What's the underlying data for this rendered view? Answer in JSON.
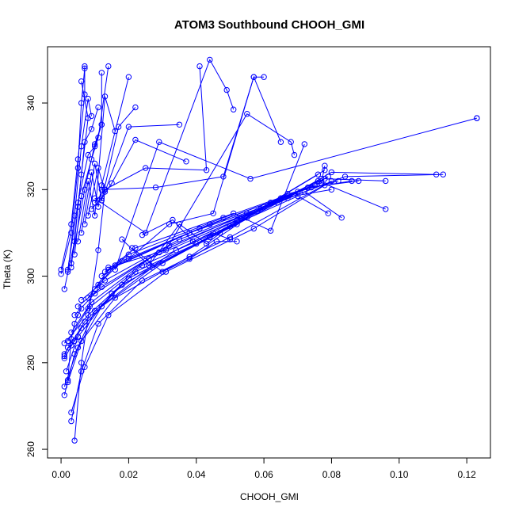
{
  "chart_data": {
    "type": "line",
    "title": "ATOM3 Southbound CHOOH_GMI",
    "xlabel": "CHOOH_GMI",
    "ylabel": "Theta (K)",
    "xlim": [
      -0.004,
      0.127
    ],
    "ylim": [
      258,
      353
    ],
    "xticks": [
      0.0,
      0.02,
      0.04,
      0.06,
      0.08,
      0.1,
      0.12
    ],
    "xtick_labels": [
      "0.00",
      "0.02",
      "0.04",
      "0.06",
      "0.08",
      "0.10",
      "0.12"
    ],
    "yticks": [
      260,
      280,
      300,
      320,
      340
    ],
    "ytick_labels": [
      "260",
      "280",
      "300",
      "320",
      "340"
    ],
    "grid": false,
    "legend": "none",
    "series_color": "#0000ff",
    "marker": "open-circle",
    "series": [
      {
        "x": [
          0.004,
          0.006,
          0.0085,
          0.011,
          0.013
        ],
        "y": [
          262,
          280,
          293,
          306,
          320
        ]
      },
      {
        "x": [
          0.003,
          0.006,
          0.011,
          0.024,
          0.05,
          0.08
        ],
        "y": [
          266.5,
          278,
          289,
          299,
          309,
          322
        ]
      },
      {
        "x": [
          0.003,
          0.007,
          0.014,
          0.031,
          0.057,
          0.078
        ],
        "y": [
          268.5,
          279,
          291,
          301,
          311,
          321
        ]
      },
      {
        "x": [
          0.001,
          0.004,
          0.01,
          0.027,
          0.052,
          0.079
        ],
        "y": [
          272.5,
          282,
          292,
          302,
          312,
          323
        ]
      },
      {
        "x": [
          0.001,
          0.005,
          0.012,
          0.03,
          0.055,
          0.077
        ],
        "y": [
          274.5,
          283.5,
          293,
          303,
          313.5,
          322.5
        ]
      },
      {
        "x": [
          0.002,
          0.006,
          0.016,
          0.038,
          0.058,
          0.076
        ],
        "y": [
          275.5,
          285,
          295,
          304.5,
          315,
          323.5
        ]
      },
      {
        "x": [
          0.0015,
          0.005,
          0.015,
          0.034,
          0.06,
          0.075
        ],
        "y": [
          278,
          286,
          296,
          306,
          316,
          321
        ]
      },
      {
        "x": [
          0.001,
          0.006,
          0.018,
          0.04,
          0.062,
          0.078
        ],
        "y": [
          281,
          288,
          298,
          307.5,
          317,
          324.5
        ]
      },
      {
        "x": [
          0.001,
          0.007,
          0.02,
          0.044,
          0.065,
          0.08
        ],
        "y": [
          282,
          289.5,
          299.5,
          309,
          318,
          320
        ]
      },
      {
        "x": [
          0.001,
          0.008,
          0.022,
          0.047,
          0.067,
          0.082
        ],
        "y": [
          284.5,
          291,
          301,
          310,
          319,
          322
        ]
      },
      {
        "x": [
          0.002,
          0.008,
          0.024,
          0.05,
          0.07,
          0.079
        ],
        "y": [
          285,
          292.5,
          302.5,
          311.5,
          318.5,
          314.5
        ]
      },
      {
        "x": [
          0.003,
          0.009,
          0.026,
          0.052,
          0.072,
          0.083
        ],
        "y": [
          287,
          294,
          304,
          313,
          319.5,
          313.5
        ]
      },
      {
        "x": [
          0.004,
          0.01,
          0.029,
          0.055,
          0.073,
          0.088
        ],
        "y": [
          291,
          296,
          305.5,
          314.5,
          320.5,
          322
        ]
      },
      {
        "x": [
          0.005,
          0.012,
          0.032,
          0.059,
          0.076,
          0.096
        ],
        "y": [
          293,
          297.5,
          307,
          315.5,
          322,
          315.5
        ]
      },
      {
        "x": [
          0.006,
          0.013,
          0.035,
          0.064,
          0.078,
          0.096
        ],
        "y": [
          294.5,
          299,
          308.5,
          317,
          322.5,
          322
        ]
      },
      {
        "x": [
          0.008,
          0.014,
          0.038,
          0.067,
          0.084,
          0.113
        ],
        "y": [
          295,
          301.5,
          310,
          318,
          323,
          323.5
        ]
      },
      {
        "x": [
          0.01,
          0.016,
          0.041,
          0.07,
          0.08,
          0.111
        ],
        "y": [
          297,
          302.5,
          311,
          319.5,
          324,
          323.5
        ]
      },
      {
        "x": [
          0.011,
          0.018,
          0.044,
          0.074,
          0.086
        ],
        "y": [
          298,
          303.5,
          312,
          320.5,
          322
        ]
      },
      {
        "x": [
          0.012,
          0.02,
          0.048,
          0.077,
          0.078
        ],
        "y": [
          300,
          305,
          313.5,
          321.5,
          325.5
        ]
      },
      {
        "x": [
          0.013,
          0.022,
          0.051,
          0.062,
          0.072
        ],
        "y": [
          301,
          306.5,
          314.5,
          310.5,
          330.5
        ]
      },
      {
        "x": [
          0.0,
          0.003,
          0.005,
          0.006,
          0.007
        ],
        "y": [
          300.5,
          310,
          325,
          340,
          348
        ]
      },
      {
        "x": [
          0.0,
          0.003,
          0.005,
          0.007,
          0.007
        ],
        "y": [
          301.5,
          312,
          327,
          342,
          348.5
        ]
      },
      {
        "x": [
          0.001,
          0.004,
          0.006,
          0.008,
          0.006
        ],
        "y": [
          297,
          308,
          323.5,
          336.5,
          345
        ]
      },
      {
        "x": [
          0.002,
          0.004,
          0.006,
          0.008,
          0.009
        ],
        "y": [
          301,
          314,
          330,
          341,
          337
        ]
      },
      {
        "x": [
          0.003,
          0.005,
          0.007,
          0.009,
          0.011
        ],
        "y": [
          302,
          316,
          331,
          334,
          339
        ]
      },
      {
        "x": [
          0.002,
          0.005,
          0.008,
          0.01,
          0.012
        ],
        "y": [
          301.5,
          317,
          328,
          330,
          335
        ]
      },
      {
        "x": [
          0.004,
          0.006,
          0.009,
          0.011,
          0.014
        ],
        "y": [
          305,
          318.5,
          327,
          332,
          348.5
        ]
      },
      {
        "x": [
          0.003,
          0.007,
          0.01,
          0.012,
          0.012
        ],
        "y": [
          303,
          320,
          330.5,
          335,
          347
        ]
      },
      {
        "x": [
          0.005,
          0.008,
          0.01,
          0.013,
          0.016
        ],
        "y": [
          308,
          322,
          314,
          341.5,
          333.5
        ]
      },
      {
        "x": [
          0.006,
          0.009,
          0.011,
          0.012,
          0.02
        ],
        "y": [
          310,
          324,
          316,
          321,
          346
        ]
      },
      {
        "x": [
          0.007,
          0.01,
          0.012,
          0.017,
          0.022
        ],
        "y": [
          312,
          326,
          317.5,
          334.5,
          339
        ]
      },
      {
        "x": [
          0.008,
          0.011,
          0.013,
          0.02,
          0.035
        ],
        "y": [
          314,
          325,
          319.5,
          334.5,
          335
        ]
      },
      {
        "x": [
          0.009,
          0.012,
          0.015,
          0.022,
          0.037
        ],
        "y": [
          315.5,
          318,
          321.5,
          331.5,
          326.5
        ]
      },
      {
        "x": [
          0.01,
          0.013,
          0.025,
          0.043,
          0.041
        ],
        "y": [
          317,
          320,
          325,
          324.5,
          348.5
        ]
      },
      {
        "x": [
          0.01,
          0.025,
          0.044,
          0.049,
          0.051
        ],
        "y": [
          318,
          310,
          350,
          343,
          338.5
        ]
      },
      {
        "x": [
          0.012,
          0.028,
          0.048,
          0.057,
          0.065
        ],
        "y": [
          320,
          320.5,
          323,
          346,
          331
        ]
      },
      {
        "x": [
          0.014,
          0.031,
          0.055,
          0.068,
          0.069
        ],
        "y": [
          302,
          306,
          337.5,
          331,
          328
        ]
      },
      {
        "x": [
          0.016,
          0.029,
          0.056,
          0.123,
          0.123
        ],
        "y": [
          301.5,
          331,
          322.5,
          336.5,
          336.5
        ]
      },
      {
        "x": [
          0.02,
          0.032,
          0.045,
          0.057,
          0.06
        ],
        "y": [
          304,
          312,
          314.5,
          346,
          346
        ]
      },
      {
        "x": [
          0.018,
          0.026,
          0.035,
          0.043,
          0.053
        ],
        "y": [
          308.5,
          302.5,
          312,
          307.5,
          313.5
        ]
      },
      {
        "x": [
          0.021,
          0.03,
          0.038,
          0.046,
          0.052
        ],
        "y": [
          306.5,
          301,
          304,
          308,
          308
        ]
      },
      {
        "x": [
          0.024,
          0.033,
          0.039,
          0.045,
          0.05
        ],
        "y": [
          309.5,
          313,
          308,
          310,
          308.5
        ]
      },
      {
        "x": [
          0.002,
          0.003,
          0.004,
          0.005,
          0.006
        ],
        "y": [
          276,
          285.5,
          289,
          291,
          292.5
        ]
      },
      {
        "x": [
          0.001,
          0.002,
          0.003,
          0.004,
          0.005
        ],
        "y": [
          281.5,
          283.5,
          284,
          285,
          286
        ]
      }
    ]
  }
}
